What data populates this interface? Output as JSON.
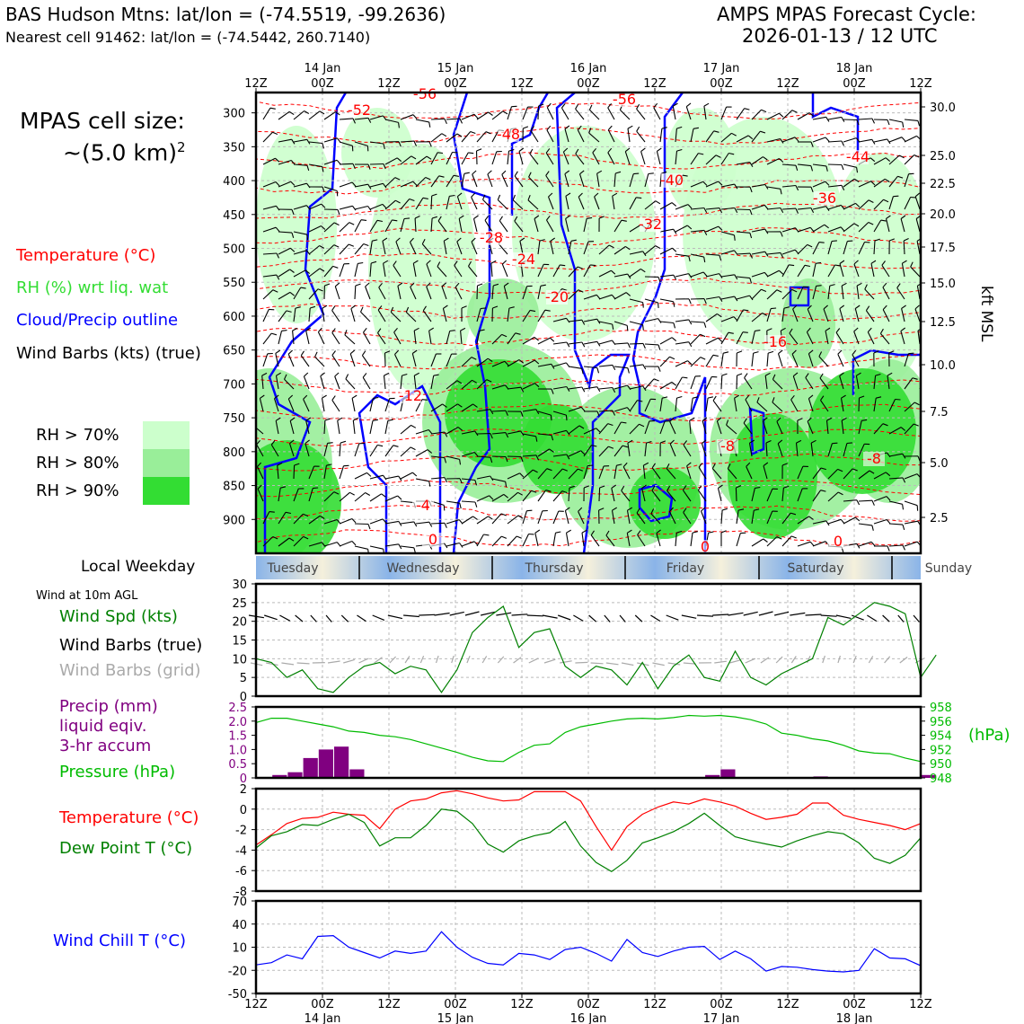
{
  "header": {
    "title_left": "BAS Hudson Mtns: lat/lon = (-74.5519, -99.2636)",
    "subtitle_left": "Nearest cell 91462: lat/lon = (-74.5442, 260.7140)",
    "title_right_1": "AMPS MPAS Forecast Cycle:",
    "title_right_2": "2026-01-13 / 12 UTC"
  },
  "legend": {
    "cell_size_1": "MPAS cell size:",
    "cell_size_2": "~(5.0 km)",
    "cell_size_sup": "2",
    "temperature": "Temperature (°C)",
    "rh": "RH (%) wrt liq. wat",
    "cloud": "Cloud/Precip outline",
    "barbs": "Wind Barbs (kts) (true)",
    "rh70": "RH > 70%",
    "rh80": "RH > 80%",
    "rh90": "RH > 90%",
    "weekday_label": "Local Weekday",
    "wind10m": "Wind at 10m AGL",
    "windspd": "Wind Spd (kts)",
    "barbs_true": "Wind Barbs (true)",
    "barbs_grid": "Wind Barbs (grid)",
    "precip_1": "Precip (mm)",
    "precip_2": "liquid eqiv.",
    "precip_3": "3-hr accum",
    "pressure": "Pressure (hPa)",
    "pressure_unit": "(hPa)",
    "temp2": "Temperature (°C)",
    "dewpoint": "Dew Point T (°C)",
    "windchill": "Wind Chill T (°C)",
    "kft_msl": "kft MSL"
  },
  "colors": {
    "temperature": "#ff0000",
    "rh_legend": "#33dd33",
    "cloud": "#0000ff",
    "rh70": "#ccffcc",
    "rh80": "#99ee99",
    "rh90": "#33dd33",
    "windspd": "#008000",
    "barbs_grid": "#aaaaaa",
    "precip": "#800080",
    "pressure": "#00bb00",
    "dewpoint": "#008000",
    "windchill": "#0000ff"
  },
  "chart_data": [
    {
      "type": "time-height",
      "name": "cross-section",
      "x_top_ticks": [
        "12Z",
        "00Z",
        "12Z",
        "00Z",
        "12Z",
        "00Z",
        "12Z",
        "00Z",
        "12Z",
        "00Z",
        "12Z"
      ],
      "x_top_days": [
        "14 Jan",
        "15 Jan",
        "16 Jan",
        "17 Jan",
        "18 Jan"
      ],
      "y_pressure_ticks": [
        "300",
        "350",
        "400",
        "450",
        "500",
        "550",
        "600",
        "650",
        "700",
        "750",
        "800",
        "850",
        "900"
      ],
      "y_kft_ticks": [
        "30.0",
        "25.0",
        "22.5",
        "20.0",
        "17.5",
        "15.0",
        "12.5",
        "10.0",
        "7.5",
        "5.0",
        "2.5"
      ],
      "temperature_contour_labels": [
        "-56",
        "-52",
        "-56",
        "-48",
        "-44",
        "-40",
        "-36",
        "-32",
        "-28",
        "-24",
        "-20",
        "-16",
        "-12",
        "-8",
        "-8",
        "-4",
        "0",
        "0",
        "0"
      ]
    },
    {
      "type": "band",
      "name": "weekday",
      "labels": [
        "Tuesday",
        "Wednesday",
        "Thursday",
        "Friday",
        "Saturday",
        "Sunday"
      ]
    },
    {
      "type": "line",
      "name": "wind-speed",
      "ylim": [
        0,
        30
      ],
      "yticks": [
        "0",
        "5",
        "10",
        "15",
        "20",
        "25",
        "30"
      ],
      "values": [
        10,
        9,
        5,
        7,
        2,
        1,
        5,
        8,
        9,
        6,
        8,
        7,
        1,
        7,
        17,
        21,
        24,
        13,
        17,
        18,
        8,
        5,
        8,
        7,
        3,
        9,
        2,
        8,
        11,
        5,
        4,
        12,
        5,
        3,
        6,
        8,
        10,
        21,
        19,
        22,
        25,
        24,
        22,
        5,
        11
      ]
    },
    {
      "type": "bar+line",
      "name": "precip-pressure",
      "precip_ylim": [
        0,
        2.5
      ],
      "precip_yticks": [
        "0",
        "0.5",
        "1.0",
        "1.5",
        "2.0",
        "2.5"
      ],
      "precip_values": [
        0,
        0.1,
        0.2,
        0.7,
        1.0,
        1.1,
        0.3,
        0,
        0,
        0,
        0,
        0,
        0,
        0,
        0,
        0,
        0,
        0,
        0,
        0,
        0,
        0,
        0,
        0,
        0,
        0,
        0,
        0,
        0,
        0.1,
        0.3,
        0,
        0,
        0,
        0,
        0,
        0.05,
        0,
        0,
        0,
        0,
        0,
        0,
        0.1
      ],
      "pressure_ylim": [
        948,
        958
      ],
      "pressure_yticks": [
        "948",
        "950",
        "952",
        "954",
        "956",
        "958"
      ],
      "pressure_values": [
        955.8,
        956.4,
        956.4,
        956.0,
        955.6,
        955.2,
        954.6,
        954.4,
        954.0,
        953.8,
        953.4,
        952.8,
        952.2,
        951.6,
        950.9,
        950.4,
        950.3,
        951.6,
        952.6,
        952.8,
        954.4,
        955.2,
        955.6,
        956.0,
        956.3,
        956.4,
        956.3,
        956.5,
        956.8,
        956.7,
        956.8,
        956.6,
        956.2,
        955.6,
        954.3,
        954.0,
        953.5,
        953.2,
        952.6,
        951.8,
        951.5,
        951.4,
        950.8,
        950.3
      ]
    },
    {
      "type": "line",
      "name": "temperature-dewpoint",
      "ylim": [
        -8,
        2
      ],
      "yticks": [
        "-8",
        "-6",
        "-4",
        "-2",
        "0",
        "2"
      ],
      "temperature": [
        -3.5,
        -2.5,
        -1.4,
        -0.9,
        -0.8,
        -0.3,
        -0.5,
        -0.6,
        -1.9,
        0,
        0.8,
        1.0,
        1.6,
        1.8,
        1.5,
        1.1,
        0.8,
        0.9,
        1.7,
        1.7,
        1.7,
        0.8,
        -1.7,
        -4.0,
        -1.7,
        -0.5,
        0.2,
        0.7,
        0.5,
        1.0,
        0.7,
        0.3,
        -0.4,
        -1.0,
        -0.8,
        -0.5,
        0.6,
        0.6,
        -0.6,
        -1.0,
        -1.3,
        -1.6,
        -2.0,
        -1.4
      ],
      "dewpoint": [
        -3.8,
        -2.6,
        -2.2,
        -1.5,
        -1.6,
        -1.0,
        -0.5,
        -1.3,
        -3.6,
        -2.8,
        -2.8,
        -1.6,
        0.0,
        -0.2,
        -1.4,
        -3.4,
        -4.2,
        -3.1,
        -2.6,
        -2.3,
        -1.2,
        -3.6,
        -5.2,
        -6.1,
        -5.0,
        -3.3,
        -2.8,
        -2.2,
        -1.4,
        -0.4,
        -1.6,
        -2.7,
        -3.1,
        -3.4,
        -3.7,
        -3.1,
        -2.6,
        -2.2,
        -2.4,
        -3.3,
        -4.8,
        -5.3,
        -4.5,
        -2.8
      ]
    },
    {
      "type": "line",
      "name": "wind-chill",
      "ylim": [
        -50,
        70
      ],
      "yticks": [
        "-50",
        "-20",
        "10",
        "40",
        "70"
      ],
      "values": [
        -13,
        -10,
        0,
        -5,
        24,
        25,
        10,
        3,
        -4,
        5,
        2,
        5,
        30,
        10,
        -3,
        -11,
        -13,
        2,
        0,
        -6,
        7,
        10,
        2,
        -8,
        20,
        3,
        -2,
        5,
        10,
        11,
        -6,
        5,
        -5,
        -21,
        -15,
        -16,
        -19,
        -21,
        -22,
        -20,
        8,
        -4,
        -5,
        -14
      ]
    }
  ],
  "bottom_axis": {
    "ticks": [
      "12Z",
      "00Z",
      "12Z",
      "00Z",
      "12Z",
      "00Z",
      "12Z",
      "00Z",
      "12Z",
      "00Z",
      "12Z"
    ],
    "days": [
      "14 Jan",
      "15 Jan",
      "16 Jan",
      "17 Jan",
      "18 Jan"
    ]
  }
}
